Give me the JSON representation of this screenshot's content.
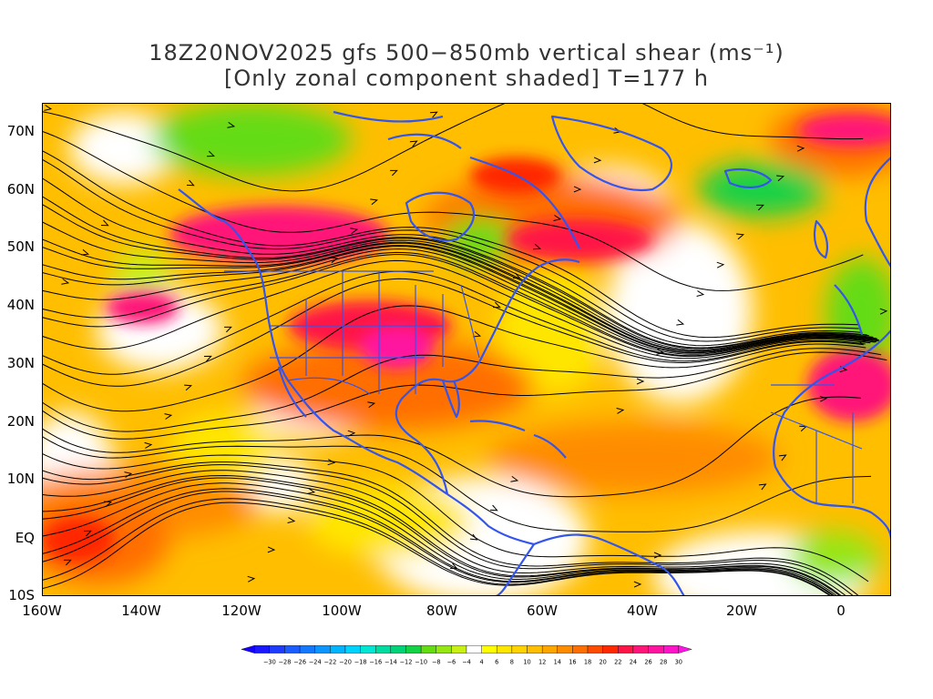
{
  "title": {
    "line1": "18Z20NOV2025 gfs 500−850mb vertical shear (ms⁻¹)",
    "line2": "[Only zonal component shaded] T=177 h"
  },
  "map": {
    "lat_labels": [
      "70N",
      "60N",
      "50N",
      "40N",
      "30N",
      "20N",
      "10N",
      "EQ",
      "10S"
    ],
    "lon_labels": [
      "160W",
      "140W",
      "120W",
      "100W",
      "80W",
      "60W",
      "40W",
      "20W",
      "0"
    ],
    "lat_range": [
      -10,
      75
    ],
    "lon_range": [
      -160,
      10
    ],
    "colors": {
      "land_outline": "#3355ee",
      "streamline": "#000000",
      "neutral": "#ffffff"
    }
  },
  "colorbar": {
    "labels": [
      "-30",
      "-28",
      "-26",
      "-24",
      "-22",
      "-20",
      "-18",
      "-16",
      "-14",
      "-12",
      "-10",
      "-8",
      "-6",
      "-4",
      "4",
      "6",
      "8",
      "10",
      "12",
      "14",
      "16",
      "18",
      "20",
      "22",
      "24",
      "26",
      "28",
      "30"
    ],
    "colors": [
      "#1a18ff",
      "#1e3cff",
      "#1a5cff",
      "#1478ff",
      "#0c94ff",
      "#00b4ff",
      "#00d2ff",
      "#00e6d2",
      "#00dca0",
      "#00d278",
      "#14d246",
      "#64dc14",
      "#96e614",
      "#c8f014",
      "#ffffff",
      "#ffff00",
      "#ffe600",
      "#ffd200",
      "#ffbe00",
      "#ffa500",
      "#ff8c00",
      "#ff6e00",
      "#ff4b00",
      "#ff2800",
      "#ff1446",
      "#ff1478",
      "#ff14a0",
      "#ff14c8"
    ]
  }
}
